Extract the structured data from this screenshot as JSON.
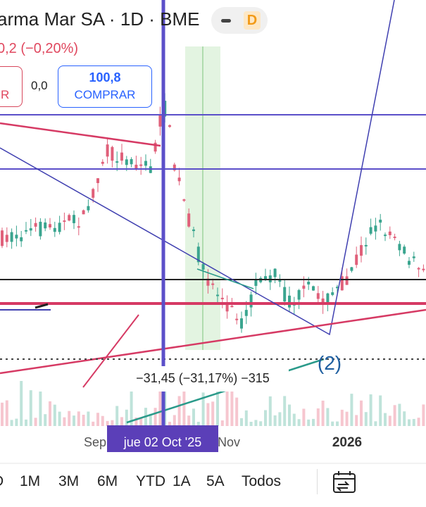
{
  "header": {
    "title": "arma Mar SA · 1D · BME",
    "badge": "D",
    "change": "0,2 (−0,20%)"
  },
  "trade": {
    "sell_fragment": "R",
    "spread": "0,0",
    "buy_price": "100,8",
    "buy_label": "COMPRAR"
  },
  "chart": {
    "measure_label": "−31,45 (−31,17%) −315",
    "wave_label": "(2)",
    "x_labels": [
      "Sep",
      "Nov",
      "2026"
    ],
    "crosshair_date": "jue 02 Oct '25"
  },
  "ranges": [
    "D",
    "1M",
    "3M",
    "6M",
    "YTD",
    "1A",
    "5A",
    "Todos"
  ]
}
